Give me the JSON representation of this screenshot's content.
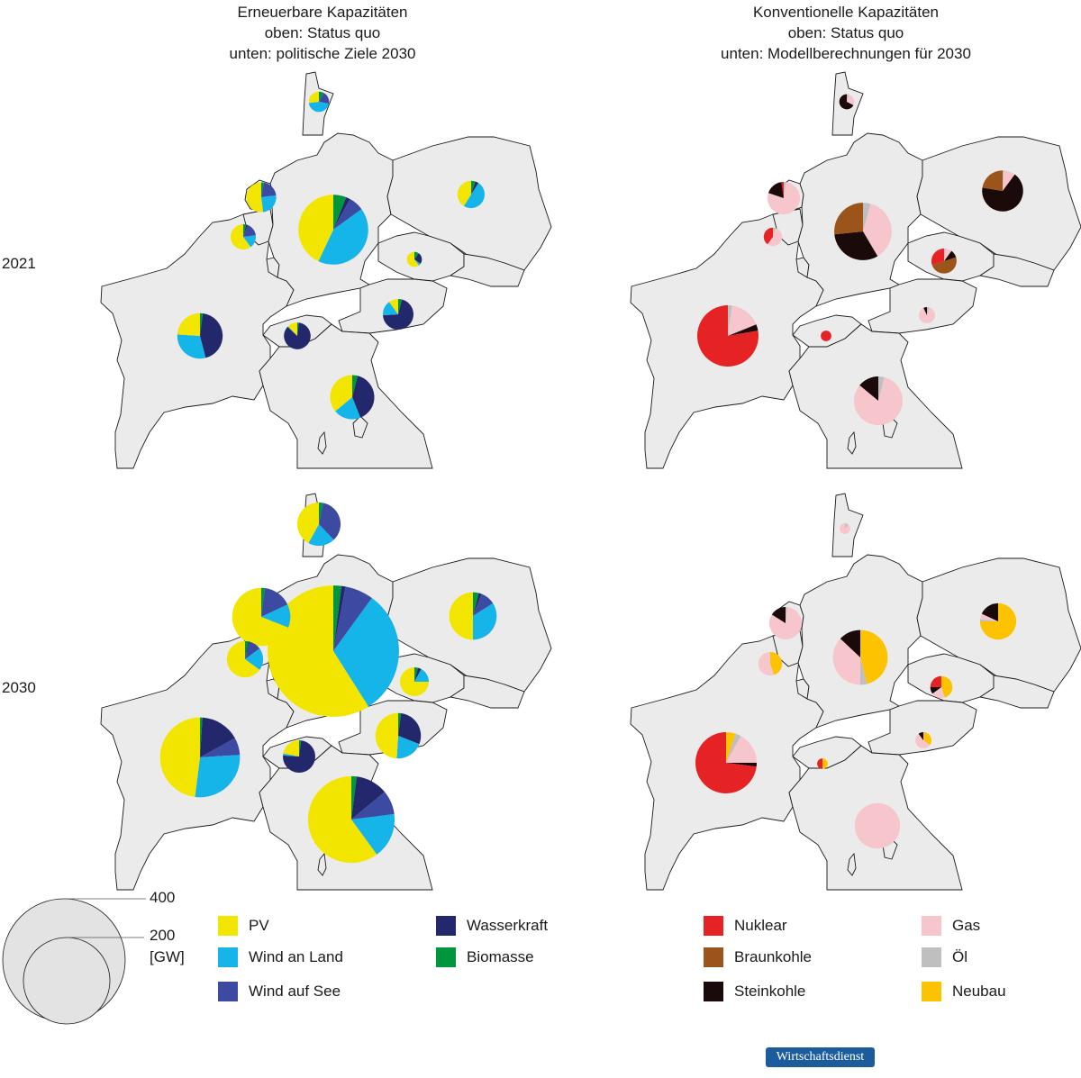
{
  "panels": {
    "renewable": {
      "title_lines": [
        "Erneuerbare Kapazitäten",
        "oben: Status quo",
        "unten: politische Ziele 2030"
      ]
    },
    "conventional": {
      "title_lines": [
        "Konventionelle Kapazitäten",
        "oben: Status quo",
        "unten: Modellberechnungen für 2030"
      ]
    }
  },
  "row_labels": [
    "2021",
    "2030"
  ],
  "size_legend": {
    "label_400": "400",
    "label_200": "200",
    "unit": "[GW]",
    "reference_values_gw": [
      400,
      200
    ]
  },
  "legend_renewable": [
    {
      "key": "pv",
      "label": "PV",
      "color": "#f2e600"
    },
    {
      "key": "wind_land",
      "label": "Wind an Land",
      "color": "#15b4e9"
    },
    {
      "key": "wind_see",
      "label": "Wind auf See",
      "color": "#3d4aa1"
    },
    {
      "key": "wasser",
      "label": "Wasserkraft",
      "color": "#23286d"
    },
    {
      "key": "bio",
      "label": "Biomasse",
      "color": "#00973c"
    }
  ],
  "legend_conventional": [
    {
      "key": "nuklear",
      "label": "Nuklear",
      "color": "#e52325"
    },
    {
      "key": "braun",
      "label": "Braunkohle",
      "color": "#9b5419"
    },
    {
      "key": "stein",
      "label": "Steinkohle",
      "color": "#1a0a0a"
    },
    {
      "key": "gas",
      "label": "Gas",
      "color": "#f7c5cc"
    },
    {
      "key": "oel",
      "label": "Öl",
      "color": "#bfbfbf"
    },
    {
      "key": "neubau",
      "label": "Neubau",
      "color": "#fdc300"
    }
  ],
  "brand": "Wirtschaftsdienst",
  "map_data": {
    "renewable_2021": [
      {
        "country": "DE",
        "total_gw": 130,
        "shares": {
          "bio": 0.06,
          "wasser": 0.02,
          "wind_see": 0.07,
          "wind_land": 0.42,
          "pv": 0.43
        }
      },
      {
        "country": "FR",
        "total_gw": 55,
        "shares": {
          "bio": 0.02,
          "wasser": 0.44,
          "wind_see": 0.0,
          "wind_land": 0.3,
          "pv": 0.24
        }
      },
      {
        "country": "IT",
        "total_gw": 52,
        "shares": {
          "bio": 0.04,
          "wasser": 0.4,
          "wind_see": 0.0,
          "wind_land": 0.2,
          "pv": 0.36
        }
      },
      {
        "country": "AT",
        "total_gw": 25,
        "shares": {
          "bio": 0.04,
          "wasser": 0.7,
          "wind_see": 0.0,
          "wind_land": 0.16,
          "pv": 0.1
        }
      },
      {
        "country": "PL",
        "total_gw": 20,
        "shares": {
          "bio": 0.05,
          "wasser": 0.04,
          "wind_see": 0.0,
          "wind_land": 0.5,
          "pv": 0.41
        }
      },
      {
        "country": "NL",
        "total_gw": 24,
        "shares": {
          "bio": 0.03,
          "wasser": 0.0,
          "wind_see": 0.2,
          "wind_land": 0.25,
          "pv": 0.52
        }
      },
      {
        "country": "BE",
        "total_gw": 17,
        "shares": {
          "bio": 0.04,
          "wasser": 0.02,
          "wind_see": 0.17,
          "wind_land": 0.17,
          "pv": 0.6
        }
      },
      {
        "country": "CH",
        "total_gw": 19,
        "shares": {
          "bio": 0.02,
          "wasser": 0.85,
          "wind_see": 0.0,
          "wind_land": 0.01,
          "pv": 0.12
        }
      },
      {
        "country": "CZ",
        "total_gw": 6,
        "shares": {
          "bio": 0.1,
          "wasser": 0.25,
          "wind_see": 0.0,
          "wind_land": 0.05,
          "pv": 0.6
        }
      },
      {
        "country": "DK",
        "total_gw": 11,
        "shares": {
          "bio": 0.08,
          "wasser": 0.0,
          "wind_see": 0.2,
          "wind_land": 0.45,
          "pv": 0.27
        }
      }
    ],
    "renewable_2030": [
      {
        "country": "DE",
        "total_gw": 460,
        "shares": {
          "bio": 0.02,
          "wasser": 0.01,
          "wind_see": 0.07,
          "wind_land": 0.31,
          "pv": 0.59
        }
      },
      {
        "country": "FR",
        "total_gw": 170,
        "shares": {
          "bio": 0.01,
          "wasser": 0.16,
          "wind_see": 0.07,
          "wind_land": 0.28,
          "pv": 0.48
        }
      },
      {
        "country": "IT",
        "total_gw": 200,
        "shares": {
          "bio": 0.02,
          "wasser": 0.12,
          "wind_see": 0.09,
          "wind_land": 0.17,
          "pv": 0.6
        }
      },
      {
        "country": "PL",
        "total_gw": 60,
        "shares": {
          "bio": 0.04,
          "wasser": 0.02,
          "wind_see": 0.1,
          "wind_land": 0.34,
          "pv": 0.5
        }
      },
      {
        "country": "NL",
        "total_gw": 90,
        "shares": {
          "bio": 0.02,
          "wasser": 0.0,
          "wind_see": 0.16,
          "wind_land": 0.13,
          "pv": 0.69
        }
      },
      {
        "country": "BE",
        "total_gw": 35,
        "shares": {
          "bio": 0.03,
          "wasser": 0.01,
          "wind_see": 0.11,
          "wind_land": 0.2,
          "pv": 0.65
        }
      },
      {
        "country": "AT",
        "total_gw": 55,
        "shares": {
          "bio": 0.02,
          "wasser": 0.29,
          "wind_see": 0.0,
          "wind_land": 0.2,
          "pv": 0.49
        }
      },
      {
        "country": "CH",
        "total_gw": 28,
        "shares": {
          "bio": 0.02,
          "wasser": 0.74,
          "wind_see": 0.0,
          "wind_land": 0.02,
          "pv": 0.22
        }
      },
      {
        "country": "CZ",
        "total_gw": 22,
        "shares": {
          "bio": 0.04,
          "wasser": 0.04,
          "wind_see": 0.0,
          "wind_land": 0.17,
          "pv": 0.75
        }
      },
      {
        "country": "DK",
        "total_gw": 50,
        "shares": {
          "bio": 0.03,
          "wasser": 0.0,
          "wind_see": 0.35,
          "wind_land": 0.2,
          "pv": 0.42
        }
      }
    ],
    "conventional_2021": [
      {
        "country": "DE",
        "total_gw": 88,
        "shares": {
          "oel": 0.04,
          "gas": 0.35,
          "stein": 0.3,
          "braun": 0.25,
          "nuklear": 0.0
        }
      },
      {
        "country": "FR",
        "total_gw": 100,
        "shares": {
          "oel": 0.02,
          "gas": 0.15,
          "stein": 0.03,
          "braun": 0.0,
          "nuklear": 0.7
        }
      },
      {
        "country": "PL",
        "total_gw": 45,
        "shares": {
          "oel": 0.01,
          "gas": 0.08,
          "stein": 0.6,
          "braun": 0.2,
          "nuklear": 0.0
        }
      },
      {
        "country": "CZ",
        "total_gw": 17,
        "shares": {
          "oel": 0.02,
          "gas": 0.08,
          "stein": 0.1,
          "braun": 0.5,
          "nuklear": 0.3
        }
      },
      {
        "country": "NL",
        "total_gw": 28,
        "shares": {
          "oel": 0.02,
          "gas": 0.71,
          "stein": 0.16,
          "braun": 0.0,
          "nuklear": 0.02
        }
      },
      {
        "country": "BE",
        "total_gw": 9,
        "shares": {
          "oel": 0.05,
          "gas": 0.55,
          "stein": 0.0,
          "braun": 0.0,
          "nuklear": 0.4
        }
      },
      {
        "country": "AT",
        "total_gw": 7,
        "shares": {
          "oel": 0.05,
          "gas": 0.88,
          "stein": 0.07,
          "braun": 0.0,
          "nuklear": 0.0
        }
      },
      {
        "country": "CH",
        "total_gw": 3,
        "shares": {
          "oel": 0.0,
          "gas": 0.0,
          "stein": 0.0,
          "braun": 0.0,
          "nuklear": 1.0
        }
      },
      {
        "country": "IT",
        "total_gw": 63,
        "shares": {
          "oel": 0.04,
          "gas": 0.82,
          "stein": 0.14,
          "braun": 0.0,
          "nuklear": 0.0
        }
      },
      {
        "country": "DK",
        "total_gw": 6,
        "shares": {
          "oel": 0.04,
          "gas": 0.25,
          "stein": 0.6,
          "braun": 0.0,
          "nuklear": 0.0
        }
      }
    ],
    "conventional_2030": [
      {
        "country": "DE",
        "total_gw": 80,
        "shares": {
          "neubau": 0.46,
          "oel": 0.04,
          "gas": 0.37,
          "stein": 0.13,
          "braun": 0.0,
          "nuklear": 0.0
        }
      },
      {
        "country": "FR",
        "total_gw": 100,
        "shares": {
          "neubau": 0.05,
          "oel": 0.03,
          "gas": 0.17,
          "stein": 0.02,
          "braun": 0.0,
          "nuklear": 0.73
        }
      },
      {
        "country": "PL",
        "total_gw": 35,
        "shares": {
          "neubau": 0.75,
          "oel": 0.02,
          "gas": 0.05,
          "stein": 0.18,
          "braun": 0.0,
          "nuklear": 0.0
        }
      },
      {
        "country": "NL",
        "total_gw": 28,
        "shares": {
          "neubau": 0.0,
          "oel": 0.02,
          "gas": 0.82,
          "stein": 0.16,
          "braun": 0.0,
          "nuklear": 0.0
        }
      },
      {
        "country": "BE",
        "total_gw": 15,
        "shares": {
          "neubau": 0.45,
          "oel": 0.0,
          "gas": 0.55,
          "stein": 0.0,
          "braun": 0.0,
          "nuklear": 0.0
        }
      },
      {
        "country": "CZ",
        "total_gw": 13,
        "shares": {
          "neubau": 0.45,
          "oel": 0.0,
          "gas": 0.2,
          "stein": 0.1,
          "braun": 0.0,
          "nuklear": 0.25
        }
      },
      {
        "country": "AT",
        "total_gw": 7,
        "shares": {
          "neubau": 0.35,
          "oel": 0.0,
          "gas": 0.55,
          "stein": 0.1,
          "braun": 0.0,
          "nuklear": 0.0
        }
      },
      {
        "country": "CH",
        "total_gw": 3,
        "shares": {
          "neubau": 0.5,
          "oel": 0.0,
          "gas": 0.0,
          "stein": 0.0,
          "braun": 0.0,
          "nuklear": 0.5
        }
      },
      {
        "country": "IT",
        "total_gw": 55,
        "shares": {
          "neubau": 0.0,
          "oel": 0.0,
          "gas": 1.0,
          "stein": 0.0,
          "braun": 0.0,
          "nuklear": 0.0
        }
      },
      {
        "country": "DK",
        "total_gw": 3,
        "shares": {
          "neubau": 0.0,
          "oel": 0.1,
          "gas": 0.9,
          "stein": 0.0,
          "braun": 0.0,
          "nuklear": 0.0
        }
      }
    ]
  }
}
